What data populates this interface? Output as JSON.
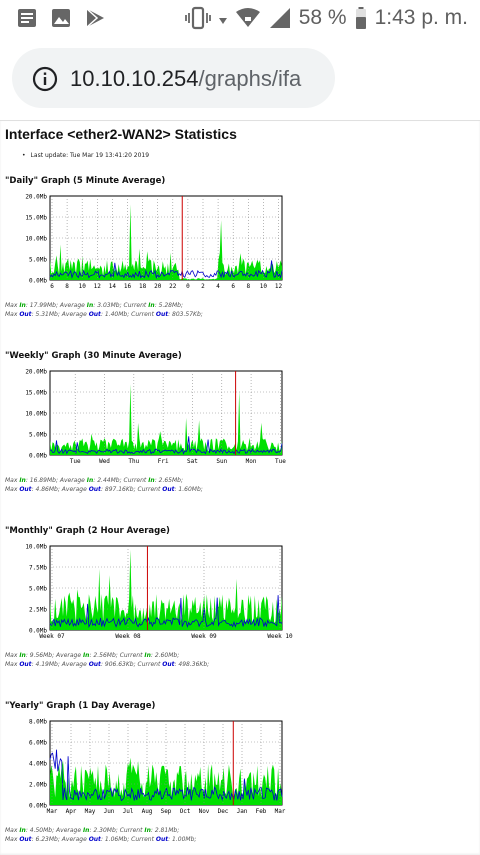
{
  "status_bar": {
    "left_icons": [
      "notes-icon",
      "image-icon",
      "play-store-icon"
    ],
    "battery_percent": "58 %",
    "time": "1:43 p. m."
  },
  "address_bar": {
    "host": "10.10.10.254",
    "path": "/graphs/ifa"
  },
  "page": {
    "title": "Interface <ether2-WAN2> Statistics",
    "last_update": "Last update: Tue Mar 19 13:41:20 2019"
  },
  "colors": {
    "in": "#00e000",
    "out": "#0000cc",
    "marker": "#cc0000",
    "grid": "#999999"
  },
  "sections": [
    {
      "title": "\"Daily\" Graph (5 Minute Average)",
      "stats_in": {
        "max_in": "17.99Mb",
        "avg_in": "3.03Mb",
        "cur_in": "5.28Mb"
      },
      "stats_out": {
        "max_out": "5.31Mb",
        "avg_out": "1.40Mb",
        "cur_out": "803.57Kb"
      }
    },
    {
      "title": "\"Weekly\" Graph (30 Minute Average)",
      "stats_in": {
        "max_in": "16.89Mb",
        "avg_in": "2.44Mb",
        "cur_in": "2.65Mb"
      },
      "stats_out": {
        "max_out": "4.86Mb",
        "avg_out": "897.16Kb",
        "cur_out": "1.60Mb"
      }
    },
    {
      "title": "\"Monthly\" Graph (2 Hour Average)",
      "stats_in": {
        "max_in": "9.56Mb",
        "avg_in": "2.56Mb",
        "cur_in": "2.60Mb"
      },
      "stats_out": {
        "max_out": "4.19Mb",
        "avg_out": "906.63Kb",
        "cur_out": "498.36Kb"
      }
    },
    {
      "title": "\"Yearly\" Graph (1 Day Average)",
      "stats_in": {
        "max_in": "4.50Mb",
        "avg_in": "2.30Mb",
        "cur_in": "2.81Mb"
      },
      "stats_out": {
        "max_out": "6.23Mb",
        "avg_out": "1.06Mb",
        "cur_out": "1.00Mb"
      }
    }
  ],
  "chart_data": [
    {
      "type": "area",
      "title": "\"Daily\" Graph (5 Minute Average)",
      "y_ticks": [
        "0.0Mb",
        "5.0Mb",
        "10.0Mb",
        "15.0Mb",
        "20.0Mb"
      ],
      "ylim": [
        0,
        20
      ],
      "x_ticks": [
        "6",
        "8",
        "10",
        "12",
        "14",
        "16",
        "18",
        "20",
        "22",
        "0",
        "2",
        "4",
        "6",
        "8",
        "10",
        "12"
      ],
      "marker_fraction": 0.57,
      "series": [
        {
          "name": "In",
          "peak": 17.99,
          "average": 3.03,
          "current": 5.28
        },
        {
          "name": "Out",
          "peak": 5.31,
          "average": 1.4,
          "current": 0.80357
        }
      ]
    },
    {
      "type": "area",
      "title": "\"Weekly\" Graph (30 Minute Average)",
      "y_ticks": [
        "0.0Mb",
        "5.0Mb",
        "10.0Mb",
        "15.0Mb",
        "20.0Mb"
      ],
      "ylim": [
        0,
        20
      ],
      "x_ticks": [
        "Tue",
        "Wed",
        "Thu",
        "Fri",
        "Sat",
        "Sun",
        "Mon",
        "Tue"
      ],
      "marker_fraction": 0.8,
      "series": [
        {
          "name": "In",
          "peak": 16.89,
          "average": 2.44,
          "current": 2.65
        },
        {
          "name": "Out",
          "peak": 4.86,
          "average": 0.89716,
          "current": 1.6
        }
      ]
    },
    {
      "type": "area",
      "title": "\"Monthly\" Graph (2 Hour Average)",
      "y_ticks": [
        "0.0Mb",
        "2.5Mb",
        "5.0Mb",
        "7.5Mb",
        "10.0Mb"
      ],
      "ylim": [
        0,
        10
      ],
      "x_ticks": [
        "Week 07",
        "Week 08",
        "Week 09",
        "Week 10"
      ],
      "marker_fraction": 0.42,
      "series": [
        {
          "name": "In",
          "peak": 9.56,
          "average": 2.56,
          "current": 2.6
        },
        {
          "name": "Out",
          "peak": 4.19,
          "average": 0.90663,
          "current": 0.49836
        }
      ]
    },
    {
      "type": "area",
      "title": "\"Yearly\" Graph (1 Day Average)",
      "y_ticks": [
        "0.0Mb",
        "2.0Mb",
        "4.0Mb",
        "6.0Mb",
        "8.0Mb"
      ],
      "ylim": [
        0,
        8
      ],
      "x_ticks": [
        "Mar",
        "Apr",
        "May",
        "Jun",
        "Jul",
        "Aug",
        "Sep",
        "Oct",
        "Nov",
        "Dec",
        "Jan",
        "Feb",
        "Mar"
      ],
      "marker_fraction": 0.79,
      "series": [
        {
          "name": "In",
          "peak": 4.5,
          "average": 2.3,
          "current": 2.81
        },
        {
          "name": "Out",
          "peak": 6.23,
          "average": 1.06,
          "current": 1.0
        }
      ]
    }
  ]
}
